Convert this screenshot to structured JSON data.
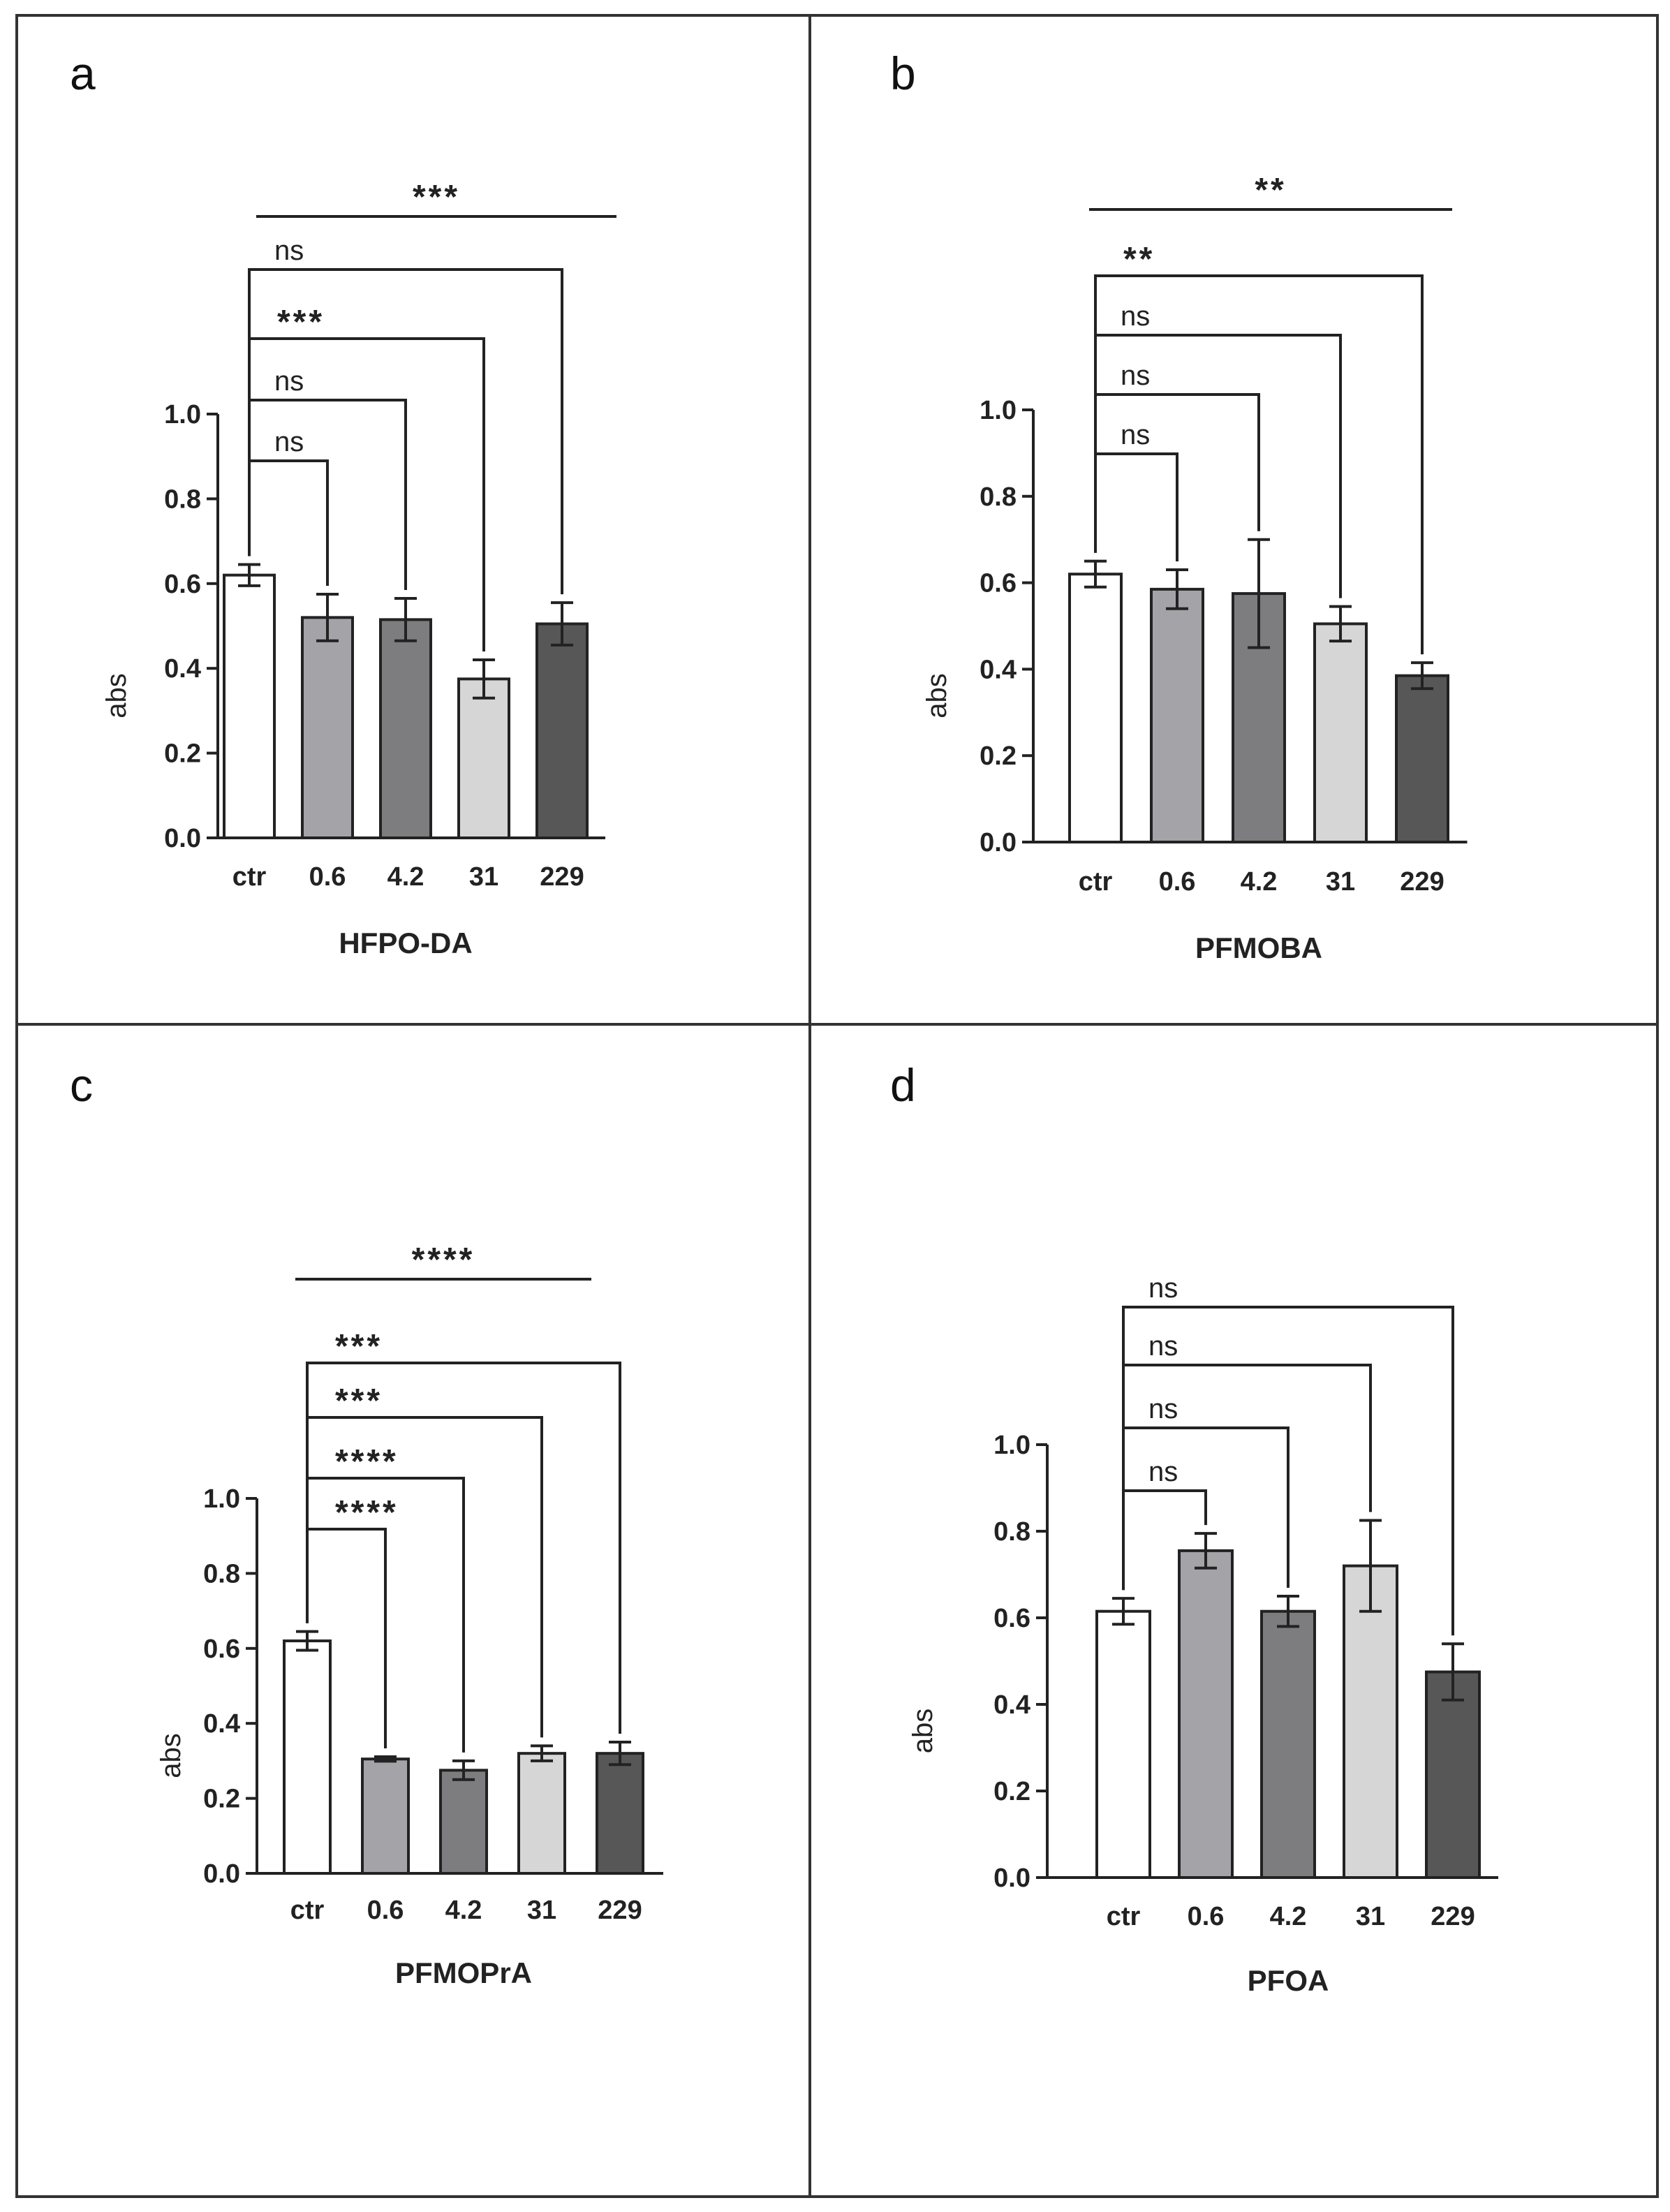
{
  "chart_data": [
    {
      "panel": "a",
      "type": "bar",
      "xlabel": "HFPO-DA",
      "ylabel": "abs",
      "ylim": [
        0,
        1.0
      ],
      "yticks": [
        "0.0",
        "0.2",
        "0.4",
        "0.6",
        "0.8",
        "1.0"
      ],
      "categories": [
        "ctr",
        "0.6",
        "4.2",
        "31",
        "229"
      ],
      "values": [
        0.62,
        0.52,
        0.515,
        0.375,
        0.505
      ],
      "errors": [
        0.025,
        0.055,
        0.05,
        0.045,
        0.05
      ],
      "bar_colors": [
        "#ffffff",
        "#a3a3a8",
        "#7d7d80",
        "#d6d6d6",
        "#575757"
      ],
      "comparisons": [
        {
          "from": "ctr",
          "to": "0.6",
          "label": "ns"
        },
        {
          "from": "ctr",
          "to": "4.2",
          "label": "ns"
        },
        {
          "from": "ctr",
          "to": "31",
          "label": "***"
        },
        {
          "from": "ctr",
          "to": "229",
          "label": "ns"
        }
      ],
      "trend": {
        "label": "***"
      }
    },
    {
      "panel": "b",
      "type": "bar",
      "xlabel": "PFMOBA",
      "ylabel": "abs",
      "ylim": [
        0,
        1.0
      ],
      "yticks": [
        "0.0",
        "0.2",
        "0.4",
        "0.6",
        "0.8",
        "1.0"
      ],
      "categories": [
        "ctr",
        "0.6",
        "4.2",
        "31",
        "229"
      ],
      "values": [
        0.62,
        0.585,
        0.575,
        0.505,
        0.385
      ],
      "errors": [
        0.03,
        0.045,
        0.125,
        0.04,
        0.03
      ],
      "bar_colors": [
        "#ffffff",
        "#a3a3a8",
        "#7d7d80",
        "#d6d6d6",
        "#575757"
      ],
      "comparisons": [
        {
          "from": "ctr",
          "to": "0.6",
          "label": "ns"
        },
        {
          "from": "ctr",
          "to": "4.2",
          "label": "ns"
        },
        {
          "from": "ctr",
          "to": "31",
          "label": "ns"
        },
        {
          "from": "ctr",
          "to": "229",
          "label": "**"
        }
      ],
      "trend": {
        "label": "**"
      }
    },
    {
      "panel": "c",
      "type": "bar",
      "xlabel": "PFMOPrA",
      "ylabel": "abs",
      "ylim": [
        0,
        1.0
      ],
      "yticks": [
        "0.0",
        "0.2",
        "0.4",
        "0.6",
        "0.8",
        "1.0"
      ],
      "categories": [
        "ctr",
        "0.6",
        "4.2",
        "31",
        "229"
      ],
      "values": [
        0.62,
        0.305,
        0.275,
        0.32,
        0.32
      ],
      "errors": [
        0.025,
        0.006,
        0.025,
        0.02,
        0.03
      ],
      "bar_colors": [
        "#ffffff",
        "#a3a3a8",
        "#7d7d80",
        "#d6d6d6",
        "#575757"
      ],
      "comparisons": [
        {
          "from": "ctr",
          "to": "0.6",
          "label": "****"
        },
        {
          "from": "ctr",
          "to": "4.2",
          "label": "****"
        },
        {
          "from": "ctr",
          "to": "31",
          "label": "***"
        },
        {
          "from": "ctr",
          "to": "229",
          "label": "***"
        }
      ],
      "trend": {
        "label": "****"
      }
    },
    {
      "panel": "d",
      "type": "bar",
      "xlabel": "PFOA",
      "ylabel": "abs",
      "ylim": [
        0,
        1.0
      ],
      "yticks": [
        "0.0",
        "0.2",
        "0.4",
        "0.6",
        "0.8",
        "1.0"
      ],
      "categories": [
        "ctr",
        "0.6",
        "4.2",
        "31",
        "229"
      ],
      "values": [
        0.615,
        0.755,
        0.615,
        0.72,
        0.475
      ],
      "errors": [
        0.03,
        0.04,
        0.035,
        0.105,
        0.065
      ],
      "bar_colors": [
        "#ffffff",
        "#a3a3a8",
        "#7d7d80",
        "#d6d6d6",
        "#575757"
      ],
      "comparisons": [
        {
          "from": "ctr",
          "to": "0.6",
          "label": "ns"
        },
        {
          "from": "ctr",
          "to": "4.2",
          "label": "ns"
        },
        {
          "from": "ctr",
          "to": "31",
          "label": "ns"
        },
        {
          "from": "ctr",
          "to": "229",
          "label": "ns"
        }
      ],
      "trend": null
    }
  ]
}
